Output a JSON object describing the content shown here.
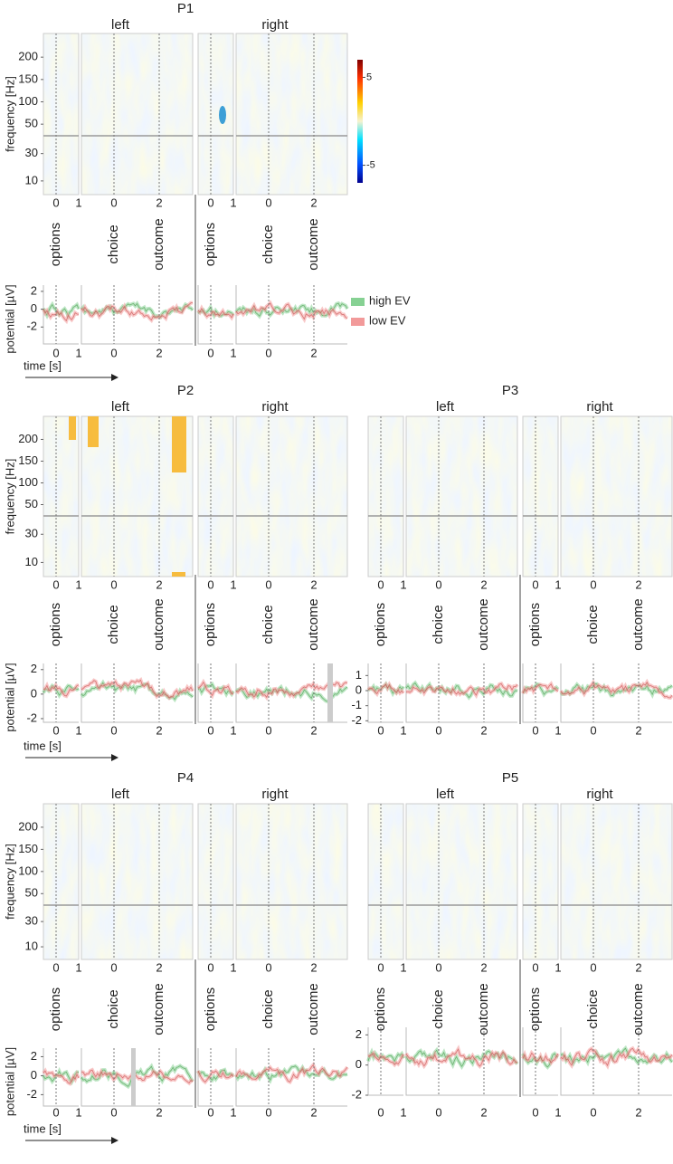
{
  "frequency_axis": {
    "upper_ylim": [
      24,
      253
    ],
    "lower_ylim": [
      0,
      43
    ]
  },
  "colorbar": {
    "lim": [
      -7,
      7
    ],
    "ticks": [
      5,
      -5
    ]
  },
  "legend": [
    {
      "name": "high EV",
      "color": "#86d193"
    },
    {
      "name": "low EV",
      "color": "#f29a9a"
    }
  ],
  "panels": [
    {
      "title": "P1",
      "sides": [
        "left",
        "right"
      ],
      "events": [
        "options",
        "choice",
        "outcome"
      ],
      "time_ticks": [
        0,
        1,
        0,
        2
      ],
      "freq_label": "frequency [Hz]",
      "freq_ticks": [
        200,
        150,
        100,
        50,
        30,
        10
      ],
      "potential_label": "potential [µV]",
      "potential_ylim": [
        -3.9,
        2.7
      ],
      "potential_ticks": [
        2,
        0,
        -2
      ],
      "time_label": "time [s]"
    },
    {
      "title": "P2",
      "sides": [
        "left",
        "right"
      ],
      "events": [
        "options",
        "choice",
        "outcome"
      ],
      "time_ticks": [
        0,
        1,
        0,
        2
      ],
      "freq_label": "frequency [Hz]",
      "freq_ticks": [
        200,
        150,
        100,
        50,
        30,
        10
      ],
      "potential_label": "potential [µV]",
      "potential_ylim": [
        -2.3,
        2.5
      ],
      "potential_ticks": [
        2,
        0,
        -2
      ],
      "time_label": "time [s]"
    },
    {
      "title": "P3",
      "sides": [
        "left",
        "right"
      ],
      "events": [
        "options",
        "choice",
        "outcome"
      ],
      "time_ticks": [
        0,
        1,
        0,
        2
      ],
      "potential_ylim": [
        -2.1,
        1.8
      ],
      "potential_ticks": [
        1,
        0,
        -1,
        -2
      ]
    },
    {
      "title": "P4",
      "sides": [
        "left",
        "right"
      ],
      "events": [
        "options",
        "choice",
        "outcome"
      ],
      "time_ticks": [
        0,
        1,
        0,
        2
      ],
      "freq_label": "frequency [Hz]",
      "freq_ticks": [
        200,
        150,
        100,
        50,
        30,
        10
      ],
      "potential_label": "potential [µV]",
      "potential_ylim": [
        -3.2,
        2.9
      ],
      "potential_ticks": [
        2,
        0,
        -2
      ],
      "time_label": "time [s]"
    },
    {
      "title": "P5",
      "sides": [
        "left",
        "right"
      ],
      "events": [
        "options",
        "choice",
        "outcome"
      ],
      "time_ticks": [
        0,
        1,
        0,
        2
      ],
      "potential_ylim": [
        -2.0,
        2.5
      ],
      "potential_ticks": [
        2,
        0,
        -2
      ]
    }
  ]
}
